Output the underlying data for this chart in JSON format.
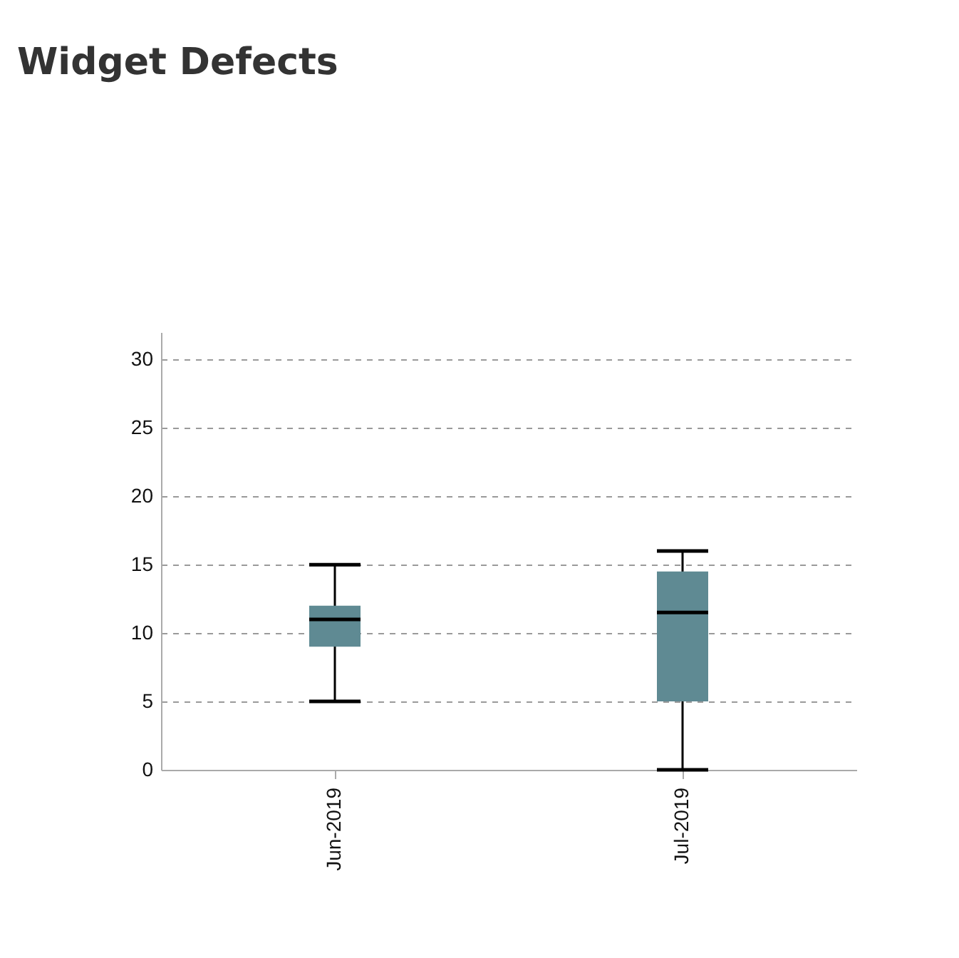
{
  "chart_data": {
    "type": "box",
    "title": "Widget Defects",
    "categories": [
      "Jun-2019",
      "Jul-2019"
    ],
    "series": [
      {
        "color": "#5f8a93",
        "boxes": [
          {
            "low": 5,
            "q1": 9,
            "median": 11,
            "q3": 12,
            "high": 15
          },
          {
            "low": 0,
            "q1": 5,
            "median": 11.5,
            "q3": 14.5,
            "high": 16
          }
        ]
      }
    ],
    "ylim": [
      0,
      32
    ],
    "yticks": [
      0,
      5,
      10,
      15,
      20,
      25,
      30
    ],
    "grid": "y"
  }
}
